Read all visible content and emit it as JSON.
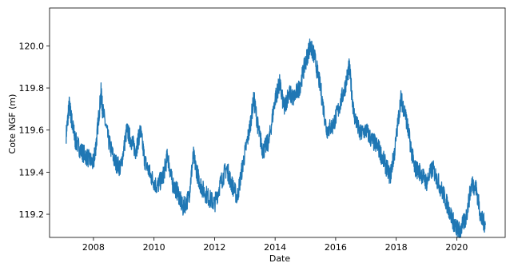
{
  "chart_data": {
    "type": "line",
    "title": "",
    "xlabel": "Date",
    "ylabel": "Cote NGF (m)",
    "xlim": [
      2006.55,
      2021.6
    ],
    "ylim": [
      119.09,
      120.18
    ],
    "grid": false,
    "x_ticks": [
      2008,
      2010,
      2012,
      2014,
      2016,
      2018,
      2020
    ],
    "x_tick_labels": [
      "2008",
      "2010",
      "2012",
      "2014",
      "2016",
      "2018",
      "2020"
    ],
    "y_ticks": [
      119.2,
      119.4,
      119.6,
      119.8,
      120.0
    ],
    "y_tick_labels": [
      "119.2",
      "119.4",
      "119.6",
      "119.8",
      "120.0"
    ],
    "color": "#1f77b4",
    "series": [
      {
        "x": [
          2007.1,
          2007.2,
          2007.3,
          2007.4,
          2007.6,
          2007.8,
          2008.0,
          2008.1,
          2008.25,
          2008.3,
          2008.5,
          2008.7,
          2008.9,
          2009.1,
          2009.25,
          2009.4,
          2009.55,
          2009.7,
          2009.9,
          2010.1,
          2010.3,
          2010.45,
          2010.6,
          2010.8,
          2010.95,
          2011.15,
          2011.3,
          2011.45,
          2011.6,
          2011.8,
          2012.0,
          2012.2,
          2012.4,
          2012.55,
          2012.75,
          2012.95,
          2013.15,
          2013.3,
          2013.45,
          2013.6,
          2013.8,
          2014.0,
          2014.15,
          2014.3,
          2014.45,
          2014.6,
          2014.8,
          2015.0,
          2015.15,
          2015.3,
          2015.5,
          2015.7,
          2015.9,
          2016.1,
          2016.3,
          2016.45,
          2016.6,
          2016.8,
          2017.0,
          2017.2,
          2017.4,
          2017.6,
          2017.8,
          2017.95,
          2018.15,
          2018.3,
          2018.45,
          2018.6,
          2018.8,
          2019.0,
          2019.2,
          2019.4,
          2019.6,
          2019.8,
          2019.95,
          2020.1,
          2020.3,
          2020.5,
          2020.65,
          2020.8,
          2020.95
        ],
        "y": [
          119.58,
          119.72,
          119.63,
          119.55,
          119.5,
          119.47,
          119.44,
          119.55,
          119.78,
          119.7,
          119.55,
          119.45,
          119.42,
          119.6,
          119.55,
          119.5,
          119.6,
          119.45,
          119.38,
          119.33,
          119.38,
          119.48,
          119.35,
          119.3,
          119.23,
          119.28,
          119.48,
          119.38,
          119.32,
          119.28,
          119.25,
          119.35,
          119.42,
          119.35,
          119.28,
          119.45,
          119.6,
          119.75,
          119.6,
          119.5,
          119.55,
          119.75,
          119.82,
          119.7,
          119.78,
          119.75,
          119.8,
          119.92,
          120.0,
          119.95,
          119.8,
          119.6,
          119.62,
          119.7,
          119.8,
          119.9,
          119.68,
          119.58,
          119.6,
          119.55,
          119.52,
          119.45,
          119.38,
          119.5,
          119.75,
          119.68,
          119.55,
          119.42,
          119.4,
          119.35,
          119.42,
          119.35,
          119.28,
          119.2,
          119.14,
          119.12,
          119.18,
          119.35,
          119.32,
          119.18,
          119.15
        ]
      }
    ]
  }
}
